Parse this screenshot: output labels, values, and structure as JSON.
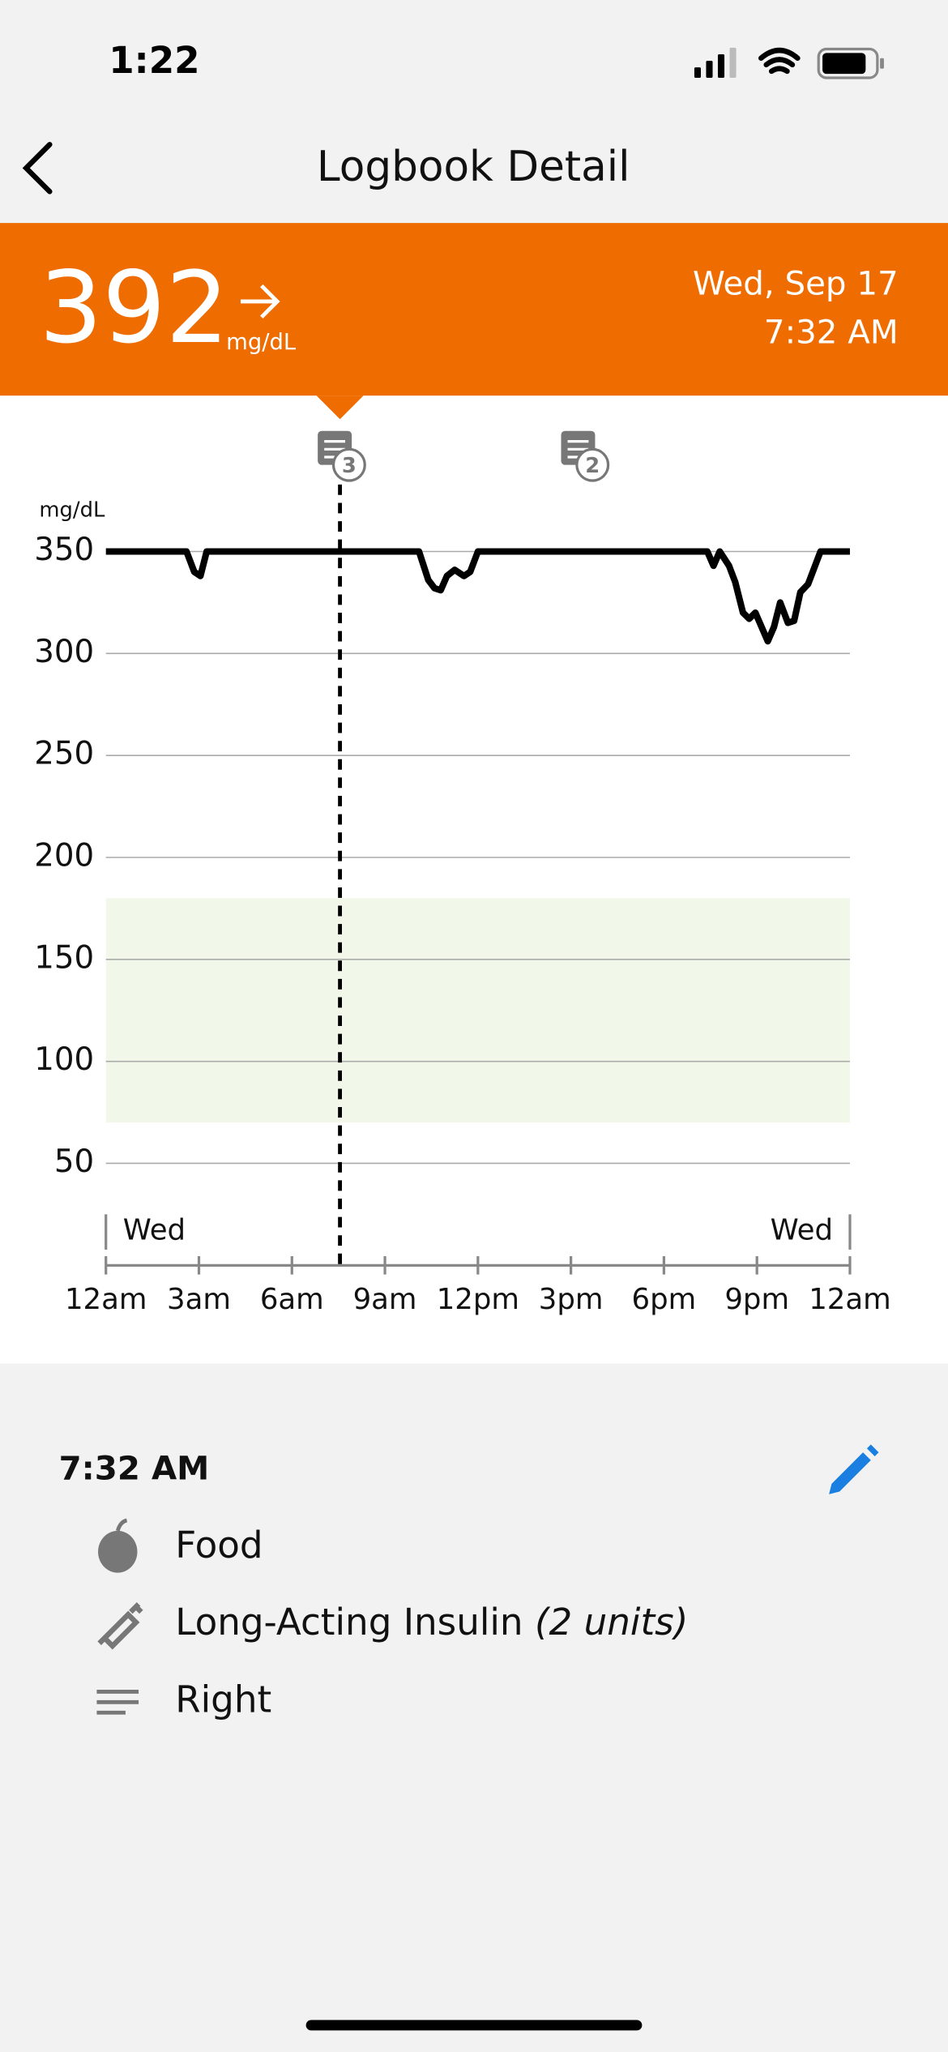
{
  "status": {
    "time": "1:22"
  },
  "nav": {
    "title": "Logbook Detail"
  },
  "reading": {
    "value": 392,
    "unit": "mg/dL",
    "date": "Wed, Sep 17",
    "time": "7:32 AM"
  },
  "chart_data": {
    "type": "line",
    "y_label": "mg/dL",
    "color": "#000000",
    "x": [
      0,
      2.6,
      2.85,
      3.05,
      3.25,
      10.1,
      10.4,
      10.6,
      10.8,
      11.0,
      11.25,
      11.55,
      11.75,
      12.0,
      19.4,
      19.6,
      19.8,
      20.1,
      20.3,
      20.55,
      20.75,
      20.95,
      21.15,
      21.35,
      21.55,
      21.75,
      22.0,
      22.2,
      22.4,
      22.65,
      22.8,
      23.05,
      24
    ],
    "values": [
      350,
      350,
      340,
      338,
      350,
      350,
      336,
      332,
      331,
      338,
      341,
      338,
      340,
      350,
      350,
      343,
      350,
      343,
      335,
      320,
      317,
      320,
      313,
      306,
      313,
      325,
      315,
      316,
      330,
      334,
      340,
      350,
      350
    ],
    "xlim": [
      0,
      24
    ],
    "xticks": [
      {
        "value": 0,
        "label": "12am"
      },
      {
        "value": 3,
        "label": "3am"
      },
      {
        "value": 6,
        "label": "6am"
      },
      {
        "value": 9,
        "label": "9am"
      },
      {
        "value": 12,
        "label": "12pm"
      },
      {
        "value": 15,
        "label": "3pm"
      },
      {
        "value": 18,
        "label": "6pm"
      },
      {
        "value": 21,
        "label": "9pm"
      },
      {
        "value": 24,
        "label": "12am"
      }
    ],
    "ylim": [
      0,
      370
    ],
    "yticks": [
      50,
      100,
      150,
      200,
      250,
      300,
      350
    ],
    "grid": true,
    "target_range": [
      70,
      180
    ],
    "target_color": "#f1f8ea",
    "day_labels": [
      "Wed",
      "Wed"
    ],
    "selected_x": 7.55,
    "notes": [
      {
        "x": 7.55,
        "count": 3
      },
      {
        "x": 15.4,
        "count": 2
      }
    ]
  },
  "detail": {
    "time": "7:32 AM",
    "items": [
      {
        "label": "Food"
      },
      {
        "label": "Long-Acting Insulin",
        "note": "(2 units)"
      },
      {
        "label": "Right"
      }
    ]
  }
}
